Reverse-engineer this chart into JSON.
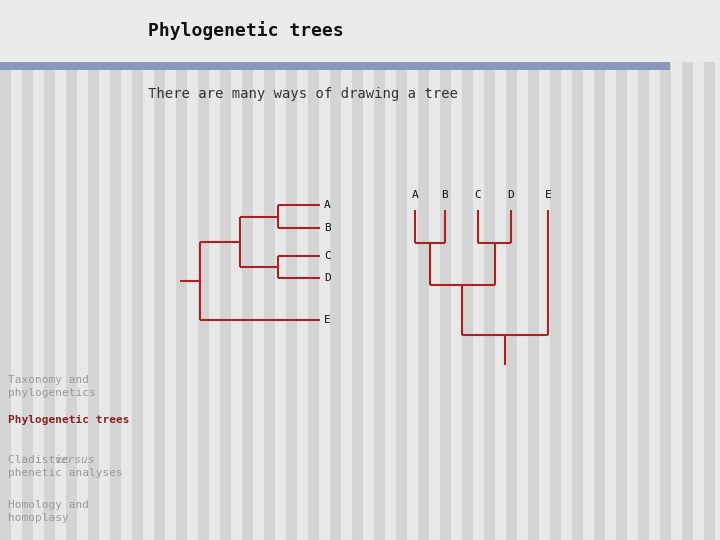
{
  "title": "Phylogenetic trees",
  "subtitle": "There are many ways of drawing a tree",
  "bg_color": "#e8e8e8",
  "stripe_color": "#d4d4d4",
  "title_bg_color": "#e8e8e8",
  "separator_color": "#8899bb",
  "tree_color": "#aa2222",
  "tree_lw": 1.5,
  "title_color": "#111111",
  "sidebar_text_color": "#888888",
  "nav_items": [
    {
      "text": "Taxonomy and\nphylogenetics",
      "bold": false,
      "color": "#999999",
      "italic_word": ""
    },
    {
      "text": "Phylogenetic trees",
      "bold": true,
      "color": "#882222",
      "italic_word": ""
    },
    {
      "text": "Cladistic|versus|\nphenetic analyses",
      "bold": false,
      "color": "#999999",
      "italic_word": "versus"
    },
    {
      "text": "Homology and\nhomoplasy",
      "bold": false,
      "color": "#999999",
      "italic_word": ""
    }
  ]
}
